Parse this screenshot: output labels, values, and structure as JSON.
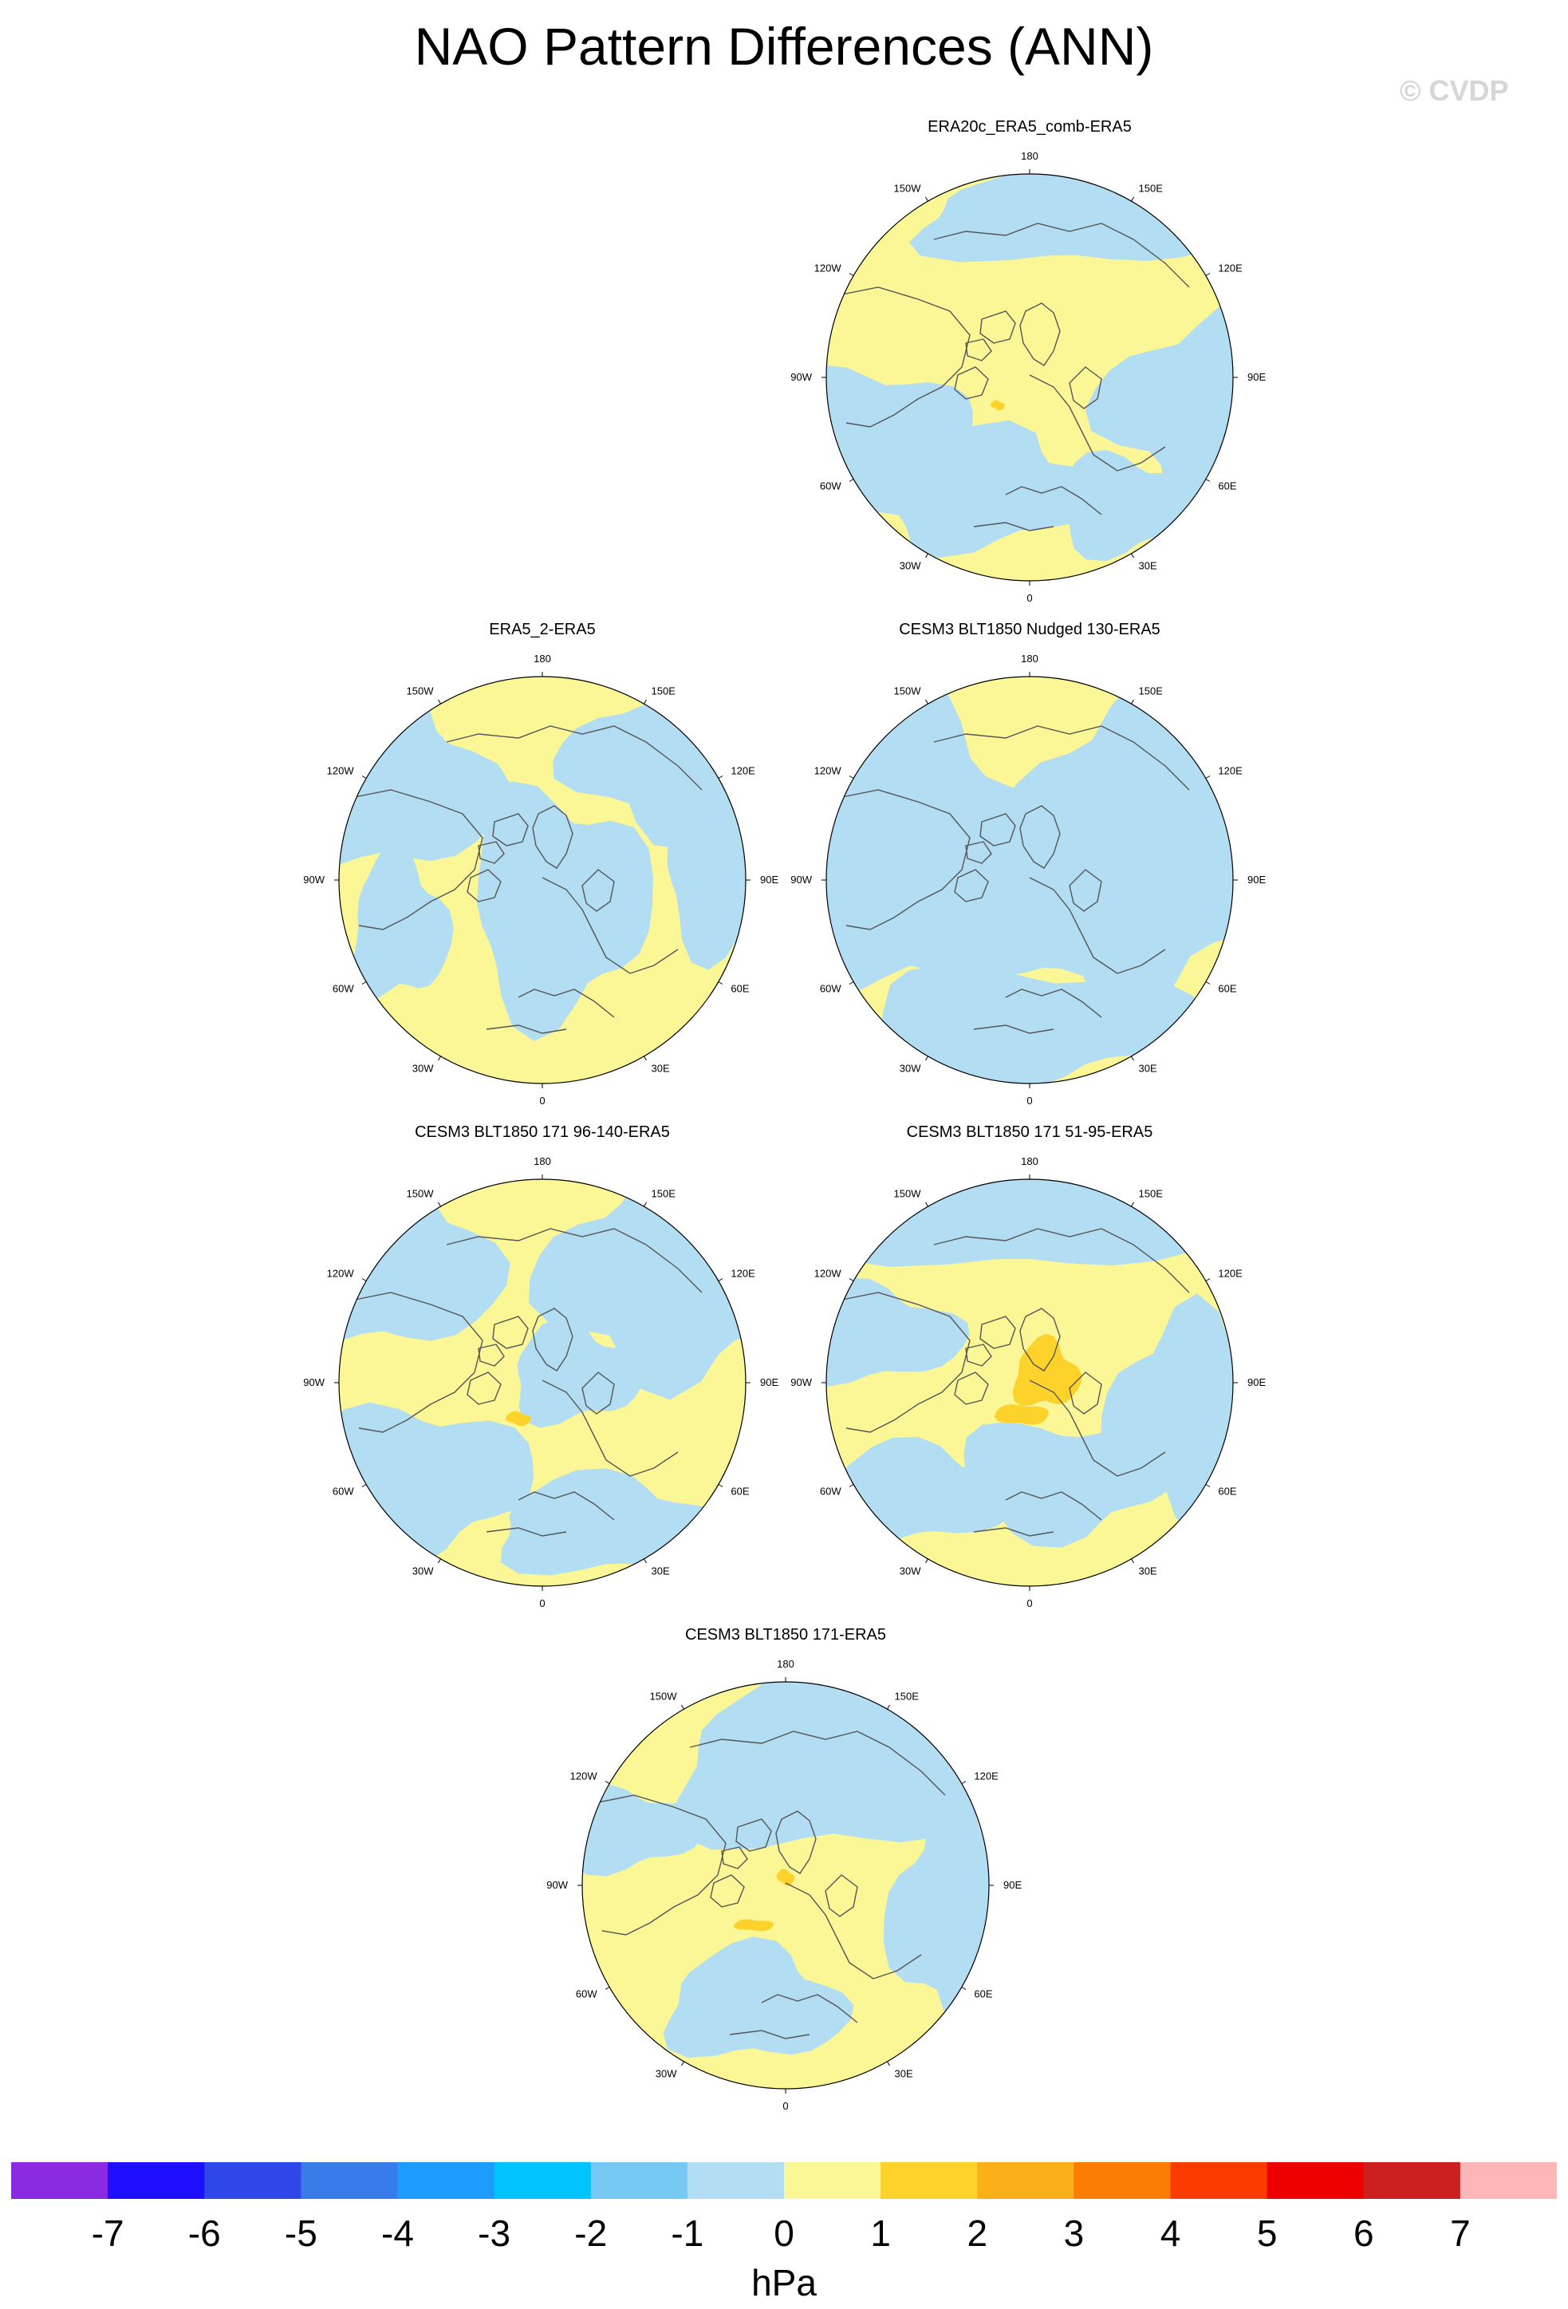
{
  "title": "NAO Pattern Differences (ANN)",
  "watermark": "© CVDP",
  "colors": {
    "land_outline": "#555555",
    "negative_fill": "#b3ddf2",
    "positive_fill": "#fbf796",
    "positive_strong": "#fdd22b",
    "positive_stronger": "#fbb01a"
  },
  "lon_labels": [
    "180",
    "150E",
    "120E",
    "90E",
    "60E",
    "30E",
    "0",
    "30W",
    "60W",
    "90W",
    "120W",
    "150W"
  ],
  "panels": [
    {
      "id": "era20c",
      "title": "ERA20c_ERA5_comb-ERA5"
    },
    {
      "id": "era5_2",
      "title": "ERA5_2-ERA5"
    },
    {
      "id": "nudged",
      "title": "CESM3 BLT1850 Nudged 130-ERA5"
    },
    {
      "id": "p96",
      "title": "CESM3 BLT1850 171 96-140-ERA5"
    },
    {
      "id": "p51",
      "title": "CESM3 BLT1850 171 51-95-ERA5"
    },
    {
      "id": "p171",
      "title": "CESM3 BLT1850 171-ERA5"
    }
  ],
  "colorbar": {
    "units": "hPa",
    "tick_labels": [
      "-7",
      "-6",
      "-5",
      "-4",
      "-3",
      "-2",
      "-1",
      "0",
      "1",
      "2",
      "3",
      "4",
      "5",
      "6",
      "7"
    ],
    "colors": [
      "#8a2be2",
      "#1e0fff",
      "#2f47e9",
      "#3a7bea",
      "#1e9bff",
      "#00c3ff",
      "#75c9f3",
      "#b3ddf2",
      "#fbf796",
      "#fdd22b",
      "#fbb01a",
      "#fc7d04",
      "#fb3c00",
      "#ec0000",
      "#cc2020",
      "#ffb6b6"
    ]
  }
}
